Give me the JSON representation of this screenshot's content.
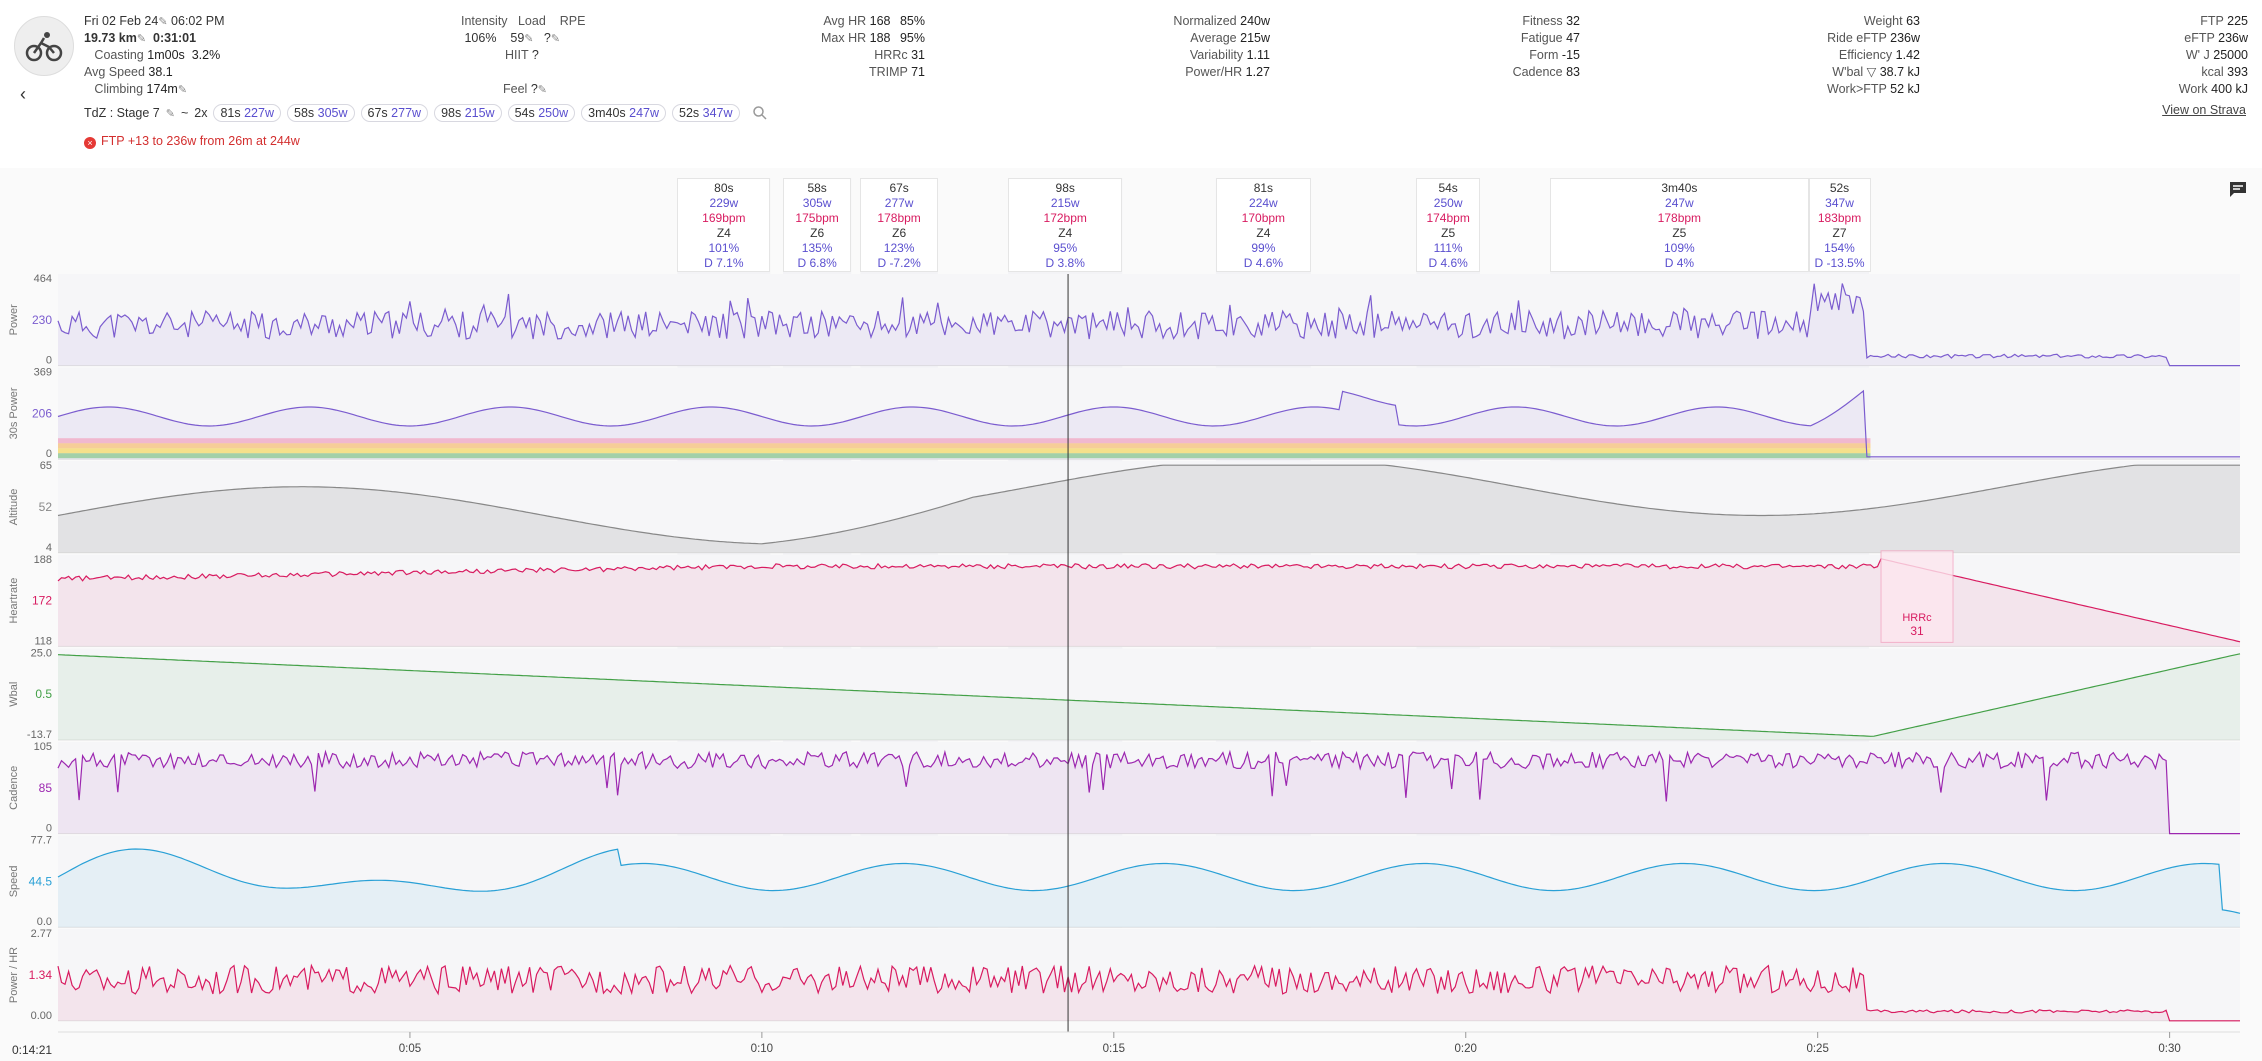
{
  "activity": {
    "date": "Fri 02 Feb 24",
    "time": "06:02 PM",
    "distance": "19.73 km",
    "duration": "0:31:01",
    "coasting_label": "Coasting",
    "coasting_value": "1m00s",
    "coasting_pct": "3.2%",
    "avg_speed_label": "Avg Speed",
    "avg_speed_value": "38.1",
    "climbing_label": "Climbing",
    "climbing_value": "174m"
  },
  "intensity": {
    "intensity_label": "Intensity",
    "intensity_value": "106%",
    "load_label": "Load",
    "load_value": "59",
    "rpe_label": "RPE",
    "rpe_value": "?",
    "hiit_label": "HIIT",
    "hiit_value": "?",
    "feel_label": "Feel",
    "feel_value": "?"
  },
  "hr_stats": [
    {
      "label": "Avg HR",
      "value": "168",
      "extra": "85%"
    },
    {
      "label": "Max HR",
      "value": "188",
      "extra": "95%"
    },
    {
      "label": "HRRc",
      "value": "31",
      "extra": ""
    },
    {
      "label": "TRIMP",
      "value": "71",
      "extra": ""
    }
  ],
  "power_stats": [
    {
      "label": "Normalized",
      "value": "240w"
    },
    {
      "label": "Average",
      "value": "215w"
    },
    {
      "label": "Variability",
      "value": "1.11"
    },
    {
      "label": "Power/HR",
      "value": "1.27"
    }
  ],
  "fitness_stats": [
    {
      "label": "Fitness",
      "value": "32"
    },
    {
      "label": "Fatigue",
      "value": "47"
    },
    {
      "label": "Form",
      "value": "-15"
    },
    {
      "label": "Cadence",
      "value": "83"
    }
  ],
  "rider_stats": [
    {
      "label": "Weight",
      "value": "63"
    },
    {
      "label": "Ride eFTP",
      "value": "236w"
    },
    {
      "label": "Efficiency",
      "value": "1.42"
    },
    {
      "label": "W'bal ▽",
      "value": "38.7 kJ"
    },
    {
      "label": "Work>FTP",
      "value": "52 kJ"
    }
  ],
  "ftp_stats": [
    {
      "label": "FTP",
      "value": "225"
    },
    {
      "label": "eFTP",
      "value": "236w"
    },
    {
      "label": "W' J",
      "value": "25000"
    },
    {
      "label": "kcal",
      "value": "393"
    },
    {
      "label": "Work",
      "value": "400 kJ"
    }
  ],
  "tdz": {
    "prefix": "TdZ : Stage 7",
    "tilde": "~",
    "reps": "2x",
    "chips": [
      {
        "d": "81s",
        "w": "227w"
      },
      {
        "d": "58s",
        "w": "305w"
      },
      {
        "d": "67s",
        "w": "277w"
      },
      {
        "d": "98s",
        "w": "215w"
      },
      {
        "d": "54s",
        "w": "250w"
      },
      {
        "d": "3m40s",
        "w": "247w"
      },
      {
        "d": "52s",
        "w": "347w"
      }
    ]
  },
  "ftp_message": "FTP +13 to 236w from 26m at 244w",
  "strava_link": "View on Strava",
  "intervals": [
    {
      "dur": "80s",
      "watts": "229w",
      "hr": "169bpm",
      "zone": "Z4",
      "pct": "101%",
      "drift": "D 7.1%",
      "start_min": 8.8,
      "end_min": 10.12
    },
    {
      "dur": "58s",
      "watts": "305w",
      "hr": "175bpm",
      "zone": "Z6",
      "pct": "135%",
      "drift": "D 6.8%",
      "start_min": 10.3,
      "end_min": 11.27
    },
    {
      "dur": "67s",
      "watts": "277w",
      "hr": "178bpm",
      "zone": "Z6",
      "pct": "123%",
      "drift": "D -7.2%",
      "start_min": 11.4,
      "end_min": 12.5
    },
    {
      "dur": "98s",
      "watts": "215w",
      "hr": "172bpm",
      "zone": "Z4",
      "pct": "95%",
      "drift": "D 3.8%",
      "start_min": 13.5,
      "end_min": 15.12
    },
    {
      "dur": "81s",
      "watts": "224w",
      "hr": "170bpm",
      "zone": "Z4",
      "pct": "99%",
      "drift": "D 4.6%",
      "start_min": 16.45,
      "end_min": 17.8
    },
    {
      "dur": "54s",
      "watts": "250w",
      "hr": "174bpm",
      "zone": "Z5",
      "pct": "111%",
      "drift": "D 4.6%",
      "start_min": 19.3,
      "end_min": 20.2
    },
    {
      "dur": "3m40s",
      "watts": "247w",
      "hr": "178bpm",
      "zone": "Z5",
      "pct": "109%",
      "drift": "D 4%",
      "start_min": 21.2,
      "end_min": 24.87
    },
    {
      "dur": "52s",
      "watts": "347w",
      "hr": "183bpm",
      "zone": "Z7",
      "pct": "154%",
      "drift": "D -13.5%",
      "start_min": 24.87,
      "end_min": 25.73
    }
  ],
  "lanes": [
    {
      "name": "Power",
      "ticks": [
        "464",
        "230",
        "0"
      ],
      "color": "#7b5ccf"
    },
    {
      "name": "30s Power",
      "ticks": [
        "369",
        "206",
        "0"
      ],
      "color": "#7b5ccf"
    },
    {
      "name": "Altitude",
      "ticks": [
        "65",
        "52",
        "4"
      ],
      "color": "#888888"
    },
    {
      "name": "Heartrate",
      "ticks": [
        "188",
        "172",
        "118"
      ],
      "color": "#d81b60"
    },
    {
      "name": "Wbal",
      "ticks": [
        "25.0",
        "0.5",
        "-13.7"
      ],
      "color": "#43a047"
    },
    {
      "name": "Cadence",
      "ticks": [
        "105",
        "85",
        "0"
      ],
      "color": "#9c27b0"
    },
    {
      "name": "Speed",
      "ticks": [
        "77.7",
        "44.5",
        "0.0"
      ],
      "color": "#29a0d6"
    },
    {
      "name": "Power / HR",
      "ticks": [
        "2.77",
        "1.34",
        "0.00"
      ],
      "color": "#d81b60"
    }
  ],
  "hrrc_box": {
    "label": "HRRc",
    "value": "31"
  },
  "x_axis": {
    "cursor_label": "0:14:21",
    "ticks": [
      "0:05",
      "0:10",
      "0:15",
      "0:20",
      "0:25",
      "0:30"
    ],
    "tick_minutes": [
      5,
      10,
      15,
      20,
      25,
      30
    ],
    "min_minute": 0,
    "max_minute": 31.0,
    "cursor_minute": 14.35
  }
}
